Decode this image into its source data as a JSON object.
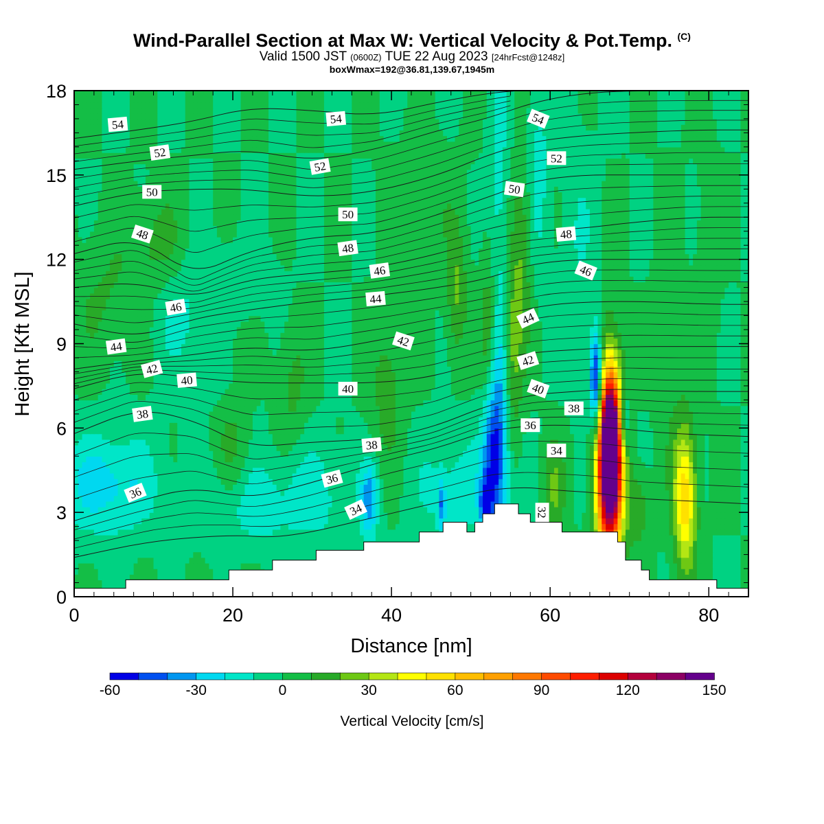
{
  "title": {
    "main": "Wind-Parallel Section at Max W: Vertical Velocity & Pot.Temp.",
    "copyright": "(C)",
    "valid_prefix": "Valid 1500 JST",
    "valid_utc": "(0600Z)",
    "valid_date": "TUE 22 Aug 2023",
    "forecast": "[24hrFcst@1248z]",
    "box_info": "boxWmax=192@36.81,139.67,1945m"
  },
  "chart_data": {
    "type": "heatmap",
    "xlabel": "Distance [nm]",
    "ylabel": "Height [Kft MSL]",
    "xlim": [
      0,
      85
    ],
    "ylim": [
      0,
      18
    ],
    "xticks": [
      0,
      20,
      40,
      60,
      80
    ],
    "yticks": [
      0,
      3,
      6,
      9,
      12,
      15,
      18
    ],
    "colorbar": {
      "label": "Vertical Velocity [cm/s]",
      "ticks": [
        -60,
        -30,
        0,
        30,
        60,
        90,
        120,
        150
      ],
      "levels": [
        -60,
        -50,
        -40,
        -30,
        -20,
        -10,
        0,
        10,
        20,
        30,
        40,
        50,
        60,
        70,
        80,
        90,
        100,
        110,
        120,
        130,
        140,
        150
      ],
      "colors": [
        "#0000e6",
        "#0050f0",
        "#0096f0",
        "#00d8f0",
        "#00e6c8",
        "#00d282",
        "#14be46",
        "#28aa28",
        "#6ec814",
        "#b4e614",
        "#ffff00",
        "#ffe100",
        "#ffbe00",
        "#ffa000",
        "#ff7800",
        "#ff4b00",
        "#ff1e00",
        "#dc0000",
        "#b4003c",
        "#8c0064",
        "#64008c"
      ]
    },
    "background_value": 0,
    "terrain": [
      [
        0,
        0.3
      ],
      [
        6.5,
        0.3
      ],
      [
        6.5,
        0.6
      ],
      [
        19.5,
        0.6
      ],
      [
        19.5,
        0.95
      ],
      [
        25,
        0.95
      ],
      [
        25,
        1.3
      ],
      [
        30.5,
        1.3
      ],
      [
        30.5,
        1.65
      ],
      [
        36.5,
        1.65
      ],
      [
        36.5,
        1.95
      ],
      [
        43.5,
        1.95
      ],
      [
        43.5,
        2.3
      ],
      [
        46.5,
        2.3
      ],
      [
        46.5,
        2.65
      ],
      [
        49.5,
        2.65
      ],
      [
        49.5,
        2.3
      ],
      [
        50.5,
        2.3
      ],
      [
        50.5,
        2.65
      ],
      [
        51.5,
        2.65
      ],
      [
        51.5,
        2.95
      ],
      [
        53,
        2.95
      ],
      [
        53,
        3.3
      ],
      [
        56,
        3.3
      ],
      [
        56,
        2.95
      ],
      [
        57.5,
        2.95
      ],
      [
        57.5,
        2.65
      ],
      [
        61.5,
        2.65
      ],
      [
        61.5,
        2.3
      ],
      [
        68.5,
        2.3
      ],
      [
        68.5,
        1.95
      ],
      [
        69.5,
        1.95
      ],
      [
        69.5,
        1.3
      ],
      [
        71.5,
        1.3
      ],
      [
        71.5,
        0.95
      ],
      [
        72.5,
        0.95
      ],
      [
        72.5,
        0.6
      ],
      [
        81,
        0.6
      ],
      [
        81,
        0.3
      ],
      [
        85,
        0.3
      ]
    ],
    "features": [
      {
        "x": 67.5,
        "y": 4.8,
        "sx": 1.1,
        "sy": 2.3,
        "value": 192
      },
      {
        "x": 67.6,
        "y": 5.6,
        "sx": 0.7,
        "sy": 1.2,
        "value": 60
      },
      {
        "x": 77,
        "y": 3.5,
        "sx": 1.0,
        "sy": 1.8,
        "value": 58
      },
      {
        "x": 65.8,
        "y": 7.6,
        "sx": 0.55,
        "sy": 1.3,
        "value": -72
      },
      {
        "x": 69.3,
        "y": 6.2,
        "sx": 0.5,
        "sy": 0.8,
        "value": -35
      },
      {
        "x": 52.8,
        "y": 4.8,
        "sx": 1.0,
        "sy": 2.0,
        "value": -45
      },
      {
        "x": 53.8,
        "y": 7.2,
        "sx": 1.0,
        "sy": 3.0,
        "value": -22
      },
      {
        "x": 51.8,
        "y": 3.2,
        "sx": 0.45,
        "sy": 0.6,
        "value": -40
      },
      {
        "x": 55.2,
        "y": 8.8,
        "sx": 0.8,
        "sy": 2.2,
        "value": 28
      },
      {
        "x": 52.2,
        "y": 9.5,
        "sx": 0.7,
        "sy": 2.0,
        "value": 20
      },
      {
        "x": 48.2,
        "y": 10.8,
        "sx": 0.9,
        "sy": 1.6,
        "value": 22
      },
      {
        "x": 56.5,
        "y": 12.2,
        "sx": 0.9,
        "sy": 2.6,
        "value": 18
      },
      {
        "x": 60.5,
        "y": 3.8,
        "sx": 1.0,
        "sy": 1.3,
        "value": 20
      },
      {
        "x": 71,
        "y": 3.2,
        "sx": 1.0,
        "sy": 1.0,
        "value": 18
      },
      {
        "x": 75,
        "y": 9.0,
        "sx": 1.2,
        "sy": 3.0,
        "value": 9
      },
      {
        "x": 37.2,
        "y": 3.4,
        "sx": 0.8,
        "sy": 0.9,
        "value": -35
      },
      {
        "x": 46.3,
        "y": 3.3,
        "sx": 0.35,
        "sy": 0.6,
        "value": -30
      },
      {
        "x": 4,
        "y": 4.0,
        "sx": 4.5,
        "sy": 1.3,
        "value": -25
      },
      {
        "x": 21,
        "y": 3.2,
        "sx": 3.5,
        "sy": 1.1,
        "value": -18
      },
      {
        "x": 30,
        "y": 3.6,
        "sx": 3.5,
        "sy": 1.3,
        "value": -15
      },
      {
        "x": 48,
        "y": 3.8,
        "sx": 3.5,
        "sy": 1.3,
        "value": -16
      },
      {
        "x": 20,
        "y": 5.6,
        "sx": 1.6,
        "sy": 2.6,
        "value": 14
      },
      {
        "x": 27.5,
        "y": 7.5,
        "sx": 1.4,
        "sy": 1.5,
        "value": 13
      },
      {
        "x": 39.5,
        "y": 7.4,
        "sx": 1.4,
        "sy": 1.8,
        "value": 16
      },
      {
        "x": 10.5,
        "y": 12.6,
        "sx": 2.5,
        "sy": 1.2,
        "value": 14
      },
      {
        "x": 4,
        "y": 10.6,
        "sx": 3.0,
        "sy": 1.6,
        "value": 11
      },
      {
        "x": 44,
        "y": 14.0,
        "sx": 3.0,
        "sy": 1.5,
        "value": 8
      },
      {
        "x": 58.5,
        "y": 15.5,
        "sx": 1.0,
        "sy": 3.0,
        "value": -14
      },
      {
        "x": 53.5,
        "y": 15.0,
        "sx": 0.9,
        "sy": 3.0,
        "value": -14
      },
      {
        "x": 14,
        "y": 10.0,
        "sx": 3.0,
        "sy": 1.5,
        "value": -12
      },
      {
        "x": 21,
        "y": 11.2,
        "sx": 3.0,
        "sy": 1.0,
        "value": -9
      },
      {
        "x": 20,
        "y": 7.3,
        "sx": 2.0,
        "sy": 0.9,
        "value": -8
      },
      {
        "x": 63.5,
        "y": 12.5,
        "sx": 1.6,
        "sy": 3.0,
        "value": -9
      },
      {
        "x": 80,
        "y": 12.0,
        "sx": 1.0,
        "sy": 2.6,
        "value": 10
      }
    ],
    "theta_contours": [
      {
        "value": 34,
        "pts": [
          [
            0,
            1.4
          ],
          [
            10,
            2.0
          ],
          [
            20,
            2.2
          ],
          [
            25,
            2.1
          ],
          [
            30,
            2.3
          ],
          [
            36,
            2.7
          ],
          [
            42,
            3.1
          ],
          [
            48,
            3.5
          ],
          [
            52,
            3.8
          ],
          [
            57,
            3.9
          ],
          [
            60,
            3.8
          ],
          [
            66,
            3.7
          ],
          [
            70,
            3.5
          ],
          [
            78,
            3.4
          ],
          [
            85,
            3.3
          ]
        ]
      },
      {
        "value": 36,
        "pts": [
          [
            0,
            2.7
          ],
          [
            8,
            3.4
          ],
          [
            15,
            3.9
          ],
          [
            22,
            3.5
          ],
          [
            28,
            3.9
          ],
          [
            34,
            4.4
          ],
          [
            40,
            4.9
          ],
          [
            46,
            5.3
          ],
          [
            52,
            5.9
          ],
          [
            58,
            6.1
          ],
          [
            63,
            6.1
          ],
          [
            68,
            6.0
          ],
          [
            75,
            5.8
          ],
          [
            85,
            5.7
          ]
        ]
      },
      {
        "value": 38,
        "pts": [
          [
            0,
            5.8
          ],
          [
            8,
            6.7
          ],
          [
            15,
            6.3
          ],
          [
            22,
            5.3
          ],
          [
            30,
            5.5
          ],
          [
            38,
            5.6
          ],
          [
            45,
            6.0
          ],
          [
            52,
            6.8
          ],
          [
            58,
            7.2
          ],
          [
            63,
            7.3
          ],
          [
            68,
            7.4
          ],
          [
            75,
            7.3
          ],
          [
            85,
            7.3
          ]
        ]
      },
      {
        "value": 40,
        "pts": [
          [
            0,
            7.4
          ],
          [
            8,
            8.0
          ],
          [
            15,
            7.8
          ],
          [
            22,
            7.6
          ],
          [
            30,
            7.6
          ],
          [
            38,
            7.6
          ],
          [
            45,
            7.8
          ],
          [
            52,
            8.4
          ],
          [
            58,
            8.7
          ],
          [
            64,
            8.8
          ],
          [
            70,
            8.9
          ],
          [
            77,
            8.9
          ],
          [
            85,
            8.9
          ]
        ]
      },
      {
        "value": 42,
        "pts": [
          [
            0,
            8.1
          ],
          [
            8,
            8.4
          ],
          [
            15,
            8.6
          ],
          [
            22,
            8.9
          ],
          [
            30,
            8.7
          ],
          [
            40,
            9.2
          ],
          [
            48,
            9.7
          ],
          [
            55,
            10.1
          ],
          [
            60,
            10.4
          ],
          [
            66,
            10.5
          ],
          [
            72,
            10.5
          ],
          [
            80,
            10.4
          ],
          [
            85,
            10.4
          ]
        ]
      },
      {
        "value": 44,
        "pts": [
          [
            0,
            9.7
          ],
          [
            8,
            9.2
          ],
          [
            15,
            9.9
          ],
          [
            22,
            10.2
          ],
          [
            30,
            10.5
          ],
          [
            38,
            10.7
          ],
          [
            46,
            11.0
          ],
          [
            52,
            11.3
          ],
          [
            57,
            11.8
          ],
          [
            63,
            12.0
          ],
          [
            70,
            12.0
          ],
          [
            78,
            12.0
          ],
          [
            85,
            12.0
          ]
        ]
      },
      {
        "value": 46,
        "pts": [
          [
            0,
            11.0
          ],
          [
            8,
            11.2
          ],
          [
            15,
            10.6
          ],
          [
            22,
            11.3
          ],
          [
            30,
            11.5
          ],
          [
            38,
            11.7
          ],
          [
            46,
            12.2
          ],
          [
            52,
            12.7
          ],
          [
            58,
            13.0
          ],
          [
            64,
            13.1
          ],
          [
            70,
            13.3
          ],
          [
            78,
            13.5
          ],
          [
            85,
            13.5
          ]
        ]
      },
      {
        "value": 48,
        "pts": [
          [
            0,
            12.2
          ],
          [
            8,
            12.8
          ],
          [
            15,
            11.4
          ],
          [
            22,
            12.3
          ],
          [
            30,
            12.8
          ],
          [
            38,
            12.9
          ],
          [
            46,
            13.6
          ],
          [
            52,
            14.2
          ],
          [
            58,
            14.8
          ],
          [
            64,
            15.0
          ],
          [
            70,
            15.0
          ],
          [
            78,
            15.0
          ],
          [
            85,
            15.0
          ]
        ]
      },
      {
        "value": 50,
        "pts": [
          [
            0,
            13.9
          ],
          [
            8,
            14.4
          ],
          [
            15,
            14.5
          ],
          [
            22,
            14.5
          ],
          [
            30,
            14.2
          ],
          [
            38,
            14.4
          ],
          [
            46,
            15.0
          ],
          [
            52,
            15.7
          ],
          [
            58,
            16.2
          ],
          [
            64,
            16.4
          ],
          [
            70,
            16.5
          ],
          [
            78,
            16.6
          ],
          [
            85,
            16.6
          ]
        ]
      },
      {
        "value": 52,
        "pts": [
          [
            0,
            15.2
          ],
          [
            8,
            15.5
          ],
          [
            15,
            15.7
          ],
          [
            22,
            15.9
          ],
          [
            30,
            15.5
          ],
          [
            38,
            15.9
          ],
          [
            46,
            16.6
          ],
          [
            52,
            17.0
          ],
          [
            58,
            17.6
          ],
          [
            64,
            17.9
          ],
          [
            70,
            18.0
          ],
          [
            85,
            18.0
          ]
        ]
      },
      {
        "value": 54,
        "pts": [
          [
            0,
            16.3
          ],
          [
            8,
            16.6
          ],
          [
            15,
            16.9
          ],
          [
            22,
            17.4
          ],
          [
            30,
            17.3
          ],
          [
            38,
            17.1
          ],
          [
            46,
            17.6
          ],
          [
            52,
            17.9
          ],
          [
            56,
            18.0
          ]
        ]
      }
    ],
    "contour_labels": [
      {
        "text": "54",
        "x": 5.5,
        "y": 16.8,
        "rot": -5
      },
      {
        "text": "54",
        "x": 33.0,
        "y": 17.0,
        "rot": -5
      },
      {
        "text": "54",
        "x": 58.5,
        "y": 17.0,
        "rot": 22
      },
      {
        "text": "52",
        "x": 10.8,
        "y": 15.8,
        "rot": -8
      },
      {
        "text": "52",
        "x": 31.0,
        "y": 15.3,
        "rot": -10
      },
      {
        "text": "52",
        "x": 60.8,
        "y": 15.6,
        "rot": 0
      },
      {
        "text": "50",
        "x": 9.8,
        "y": 14.4,
        "rot": 0
      },
      {
        "text": "50",
        "x": 34.5,
        "y": 13.6,
        "rot": 0
      },
      {
        "text": "50",
        "x": 55.5,
        "y": 14.5,
        "rot": 8
      },
      {
        "text": "48",
        "x": 8.6,
        "y": 12.9,
        "rot": 18
      },
      {
        "text": "48",
        "x": 34.5,
        "y": 12.4,
        "rot": -8
      },
      {
        "text": "48",
        "x": 62.0,
        "y": 12.9,
        "rot": -5
      },
      {
        "text": "46",
        "x": 38.5,
        "y": 11.6,
        "rot": -8
      },
      {
        "text": "46",
        "x": 64.5,
        "y": 11.6,
        "rot": 22
      },
      {
        "text": "46",
        "x": 12.8,
        "y": 10.3,
        "rot": -10
      },
      {
        "text": "44",
        "x": 38.0,
        "y": 10.6,
        "rot": -5
      },
      {
        "text": "44",
        "x": 57.2,
        "y": 9.9,
        "rot": -25
      },
      {
        "text": "44",
        "x": 5.3,
        "y": 8.9,
        "rot": -8
      },
      {
        "text": "42",
        "x": 41.5,
        "y": 9.1,
        "rot": 18
      },
      {
        "text": "42",
        "x": 57.2,
        "y": 8.4,
        "rot": -18
      },
      {
        "text": "42",
        "x": 9.8,
        "y": 8.1,
        "rot": -15
      },
      {
        "text": "40",
        "x": 14.2,
        "y": 7.7,
        "rot": -5
      },
      {
        "text": "40",
        "x": 34.5,
        "y": 7.4,
        "rot": 0
      },
      {
        "text": "40",
        "x": 58.5,
        "y": 7.4,
        "rot": 20
      },
      {
        "text": "38",
        "x": 63.0,
        "y": 6.7,
        "rot": 0
      },
      {
        "text": "38",
        "x": 8.6,
        "y": 6.5,
        "rot": -8
      },
      {
        "text": "38",
        "x": 37.5,
        "y": 5.4,
        "rot": -5
      },
      {
        "text": "36",
        "x": 57.5,
        "y": 6.1,
        "rot": 0
      },
      {
        "text": "36",
        "x": 32.5,
        "y": 4.2,
        "rot": -15
      },
      {
        "text": "36",
        "x": 7.7,
        "y": 3.7,
        "rot": -22
      },
      {
        "text": "34",
        "x": 60.8,
        "y": 5.2,
        "rot": 0
      },
      {
        "text": "34",
        "x": 35.5,
        "y": 3.1,
        "rot": -25
      },
      {
        "text": "32",
        "x": 59.0,
        "y": 3.0,
        "rot": 90
      }
    ]
  }
}
